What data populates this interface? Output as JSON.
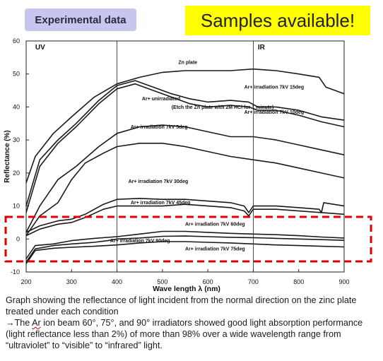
{
  "header": {
    "badge": "Experimental data",
    "banner": "Samples available!"
  },
  "chart_data": {
    "type": "line",
    "xlabel": "Wave length λ (nm)",
    "ylabel": "Reflectance (%)",
    "xlim": [
      200,
      900
    ],
    "ylim": [
      -10,
      60
    ],
    "x_ticks": [
      200,
      300,
      400,
      500,
      600,
      700,
      800,
      900
    ],
    "y_ticks": [
      -10,
      0,
      10,
      20,
      30,
      40,
      50,
      60
    ],
    "regions": [
      {
        "label": "UV",
        "x": 220
      },
      {
        "label": "IR",
        "x": 710
      }
    ],
    "annotations": [
      {
        "text": "Zn plate",
        "x": 535,
        "y": 53
      },
      {
        "text": "Ar+ irradiation 7kV 15deg",
        "x": 680,
        "y": 45.5
      },
      {
        "text": "Ar+ unirradiated",
        "x": 455,
        "y": 42
      },
      {
        "text": "(Etch the Zn plate with 2M HCl for 1 minute)",
        "x": 520,
        "y": 39.5
      },
      {
        "text": "Ar+ irradiation 7kV 10deg",
        "x": 680,
        "y": 38
      },
      {
        "text": "Ar+ irradiation 7kV 5deg",
        "x": 430,
        "y": 33.5
      },
      {
        "text": "Ar+ irradiation 7kV 30deg",
        "x": 425,
        "y": 17
      },
      {
        "text": "Ar+ irradiation 7kV 45deg",
        "x": 430,
        "y": 10.5
      },
      {
        "text": "Ar+ irradiation 7kV 60deg",
        "x": 550,
        "y": 4
      },
      {
        "text": "Ar+ irradiation 7kV 90deg",
        "x": 385,
        "y": -1
      },
      {
        "text": "Ar+ irradiation 7kV 75deg",
        "x": 550,
        "y": -3.5
      }
    ],
    "series": [
      {
        "values": [
          [
            200,
            17
          ],
          [
            220,
            25
          ],
          [
            260,
            32
          ],
          [
            300,
            37
          ],
          [
            350,
            43
          ],
          [
            400,
            47
          ],
          [
            450,
            49
          ],
          [
            500,
            50.5
          ],
          [
            550,
            51
          ],
          [
            600,
            51
          ],
          [
            650,
            51
          ],
          [
            700,
            51.5
          ],
          [
            750,
            51
          ],
          [
            800,
            50
          ],
          [
            845,
            49
          ],
          [
            860,
            46
          ],
          [
            900,
            44
          ]
        ]
      },
      {
        "values": [
          [
            200,
            10
          ],
          [
            230,
            24
          ],
          [
            270,
            30
          ],
          [
            310,
            35
          ],
          [
            360,
            42
          ],
          [
            400,
            46.5
          ],
          [
            440,
            48
          ],
          [
            480,
            46
          ],
          [
            520,
            44
          ],
          [
            560,
            42.5
          ],
          [
            600,
            41.5
          ],
          [
            650,
            42
          ],
          [
            690,
            41.5
          ],
          [
            710,
            40
          ],
          [
            750,
            40
          ],
          [
            800,
            39
          ],
          [
            850,
            37
          ],
          [
            900,
            36
          ]
        ]
      },
      {
        "values": [
          [
            200,
            8
          ],
          [
            230,
            22
          ],
          [
            270,
            29
          ],
          [
            310,
            34
          ],
          [
            360,
            41
          ],
          [
            400,
            45.5
          ],
          [
            440,
            47
          ],
          [
            480,
            45
          ],
          [
            520,
            43
          ],
          [
            560,
            41
          ],
          [
            600,
            40
          ],
          [
            650,
            40.5
          ],
          [
            690,
            40
          ],
          [
            710,
            39
          ],
          [
            750,
            39
          ],
          [
            800,
            37.5
          ],
          [
            850,
            35.5
          ],
          [
            900,
            34
          ]
        ]
      },
      {
        "values": [
          [
            200,
            2
          ],
          [
            230,
            10
          ],
          [
            270,
            18
          ],
          [
            310,
            22
          ],
          [
            360,
            28
          ],
          [
            400,
            32
          ],
          [
            450,
            34
          ],
          [
            500,
            34.5
          ],
          [
            550,
            34
          ],
          [
            600,
            32.5
          ],
          [
            650,
            31
          ],
          [
            700,
            31
          ],
          [
            750,
            30
          ],
          [
            800,
            28.5
          ],
          [
            850,
            27
          ],
          [
            900,
            25.5
          ]
        ]
      },
      {
        "values": [
          [
            200,
            1
          ],
          [
            230,
            7
          ],
          [
            270,
            11
          ],
          [
            300,
            18
          ],
          [
            330,
            23
          ],
          [
            370,
            26
          ],
          [
            400,
            28
          ],
          [
            450,
            29
          ],
          [
            500,
            29
          ],
          [
            550,
            28
          ],
          [
            600,
            26.5
          ],
          [
            650,
            25
          ],
          [
            700,
            24
          ],
          [
            750,
            23
          ],
          [
            800,
            21.5
          ],
          [
            850,
            20
          ],
          [
            900,
            18.5
          ]
        ]
      },
      {
        "values": [
          [
            200,
            2
          ],
          [
            230,
            4
          ],
          [
            270,
            5.5
          ],
          [
            300,
            6
          ],
          [
            330,
            7.5
          ],
          [
            370,
            10.5
          ],
          [
            400,
            12
          ],
          [
            450,
            12.3
          ],
          [
            500,
            12
          ],
          [
            550,
            12
          ],
          [
            600,
            11.5
          ],
          [
            650,
            11
          ],
          [
            680,
            10
          ],
          [
            690,
            8
          ],
          [
            700,
            10
          ],
          [
            750,
            10
          ],
          [
            800,
            9.5
          ],
          [
            845,
            9
          ],
          [
            850,
            8
          ],
          [
            855,
            11
          ],
          [
            900,
            10
          ]
        ]
      },
      {
        "values": [
          [
            200,
            1
          ],
          [
            230,
            3
          ],
          [
            270,
            4.5
          ],
          [
            300,
            5
          ],
          [
            330,
            6.5
          ],
          [
            370,
            9
          ],
          [
            400,
            10
          ],
          [
            450,
            10
          ],
          [
            500,
            10
          ],
          [
            550,
            10.5
          ],
          [
            600,
            10
          ],
          [
            650,
            9.5
          ],
          [
            680,
            8.5
          ],
          [
            690,
            7
          ],
          [
            700,
            9
          ],
          [
            750,
            9
          ],
          [
            800,
            8.5
          ],
          [
            850,
            8
          ],
          [
            900,
            7.5
          ]
        ]
      },
      {
        "values": [
          [
            200,
            -6
          ],
          [
            220,
            -2
          ],
          [
            260,
            -1.5
          ],
          [
            300,
            -0.5
          ],
          [
            350,
            0.2
          ],
          [
            400,
            0.7
          ],
          [
            450,
            1.5
          ],
          [
            500,
            2.3
          ],
          [
            550,
            2.3
          ],
          [
            600,
            2
          ],
          [
            650,
            1.7
          ],
          [
            700,
            1.5
          ],
          [
            750,
            1.3
          ],
          [
            800,
            1
          ],
          [
            850,
            0.6
          ],
          [
            900,
            0.3
          ]
        ]
      },
      {
        "values": [
          [
            200,
            -7
          ],
          [
            220,
            -3
          ],
          [
            260,
            -2
          ],
          [
            300,
            -1.5
          ],
          [
            350,
            -1
          ],
          [
            380,
            -0.5
          ],
          [
            400,
            0
          ],
          [
            450,
            0.3
          ],
          [
            500,
            0.8
          ],
          [
            550,
            0.9
          ],
          [
            600,
            0.7
          ],
          [
            650,
            0.5
          ],
          [
            700,
            0.4
          ],
          [
            750,
            0.2
          ],
          [
            800,
            0
          ],
          [
            850,
            -0.2
          ],
          [
            900,
            -0.4
          ]
        ]
      },
      {
        "values": [
          [
            200,
            -7.5
          ],
          [
            220,
            -3.5
          ],
          [
            260,
            -2.8
          ],
          [
            300,
            -2.5
          ],
          [
            350,
            -2.2
          ],
          [
            400,
            -1.8
          ],
          [
            450,
            -1.2
          ],
          [
            500,
            -0.8
          ],
          [
            550,
            -0.8
          ],
          [
            600,
            -1
          ],
          [
            650,
            -1.2
          ],
          [
            700,
            -1.5
          ],
          [
            750,
            -1.8
          ],
          [
            800,
            -2
          ],
          [
            850,
            -2.2
          ],
          [
            900,
            -2.4
          ]
        ]
      }
    ]
  },
  "caption": {
    "line1": "Graph showing the reflectance of light incident from the normal direction on the zinc plate treated under each condition",
    "line2_pre": "→The ",
    "line2_ar": "Ar",
    "line2_post": " ion beam 60°, 75°, and 90° irradiators showed good light absorption performance (light reflectance less than 2%) of more than 98% over a wide wavelength range from “ultraviolet” to “visible” to “infrared” light."
  },
  "colors": {
    "badge_bg": "#c7c6ee",
    "banner_bg": "#ffff00",
    "highlight": "#e00000"
  }
}
